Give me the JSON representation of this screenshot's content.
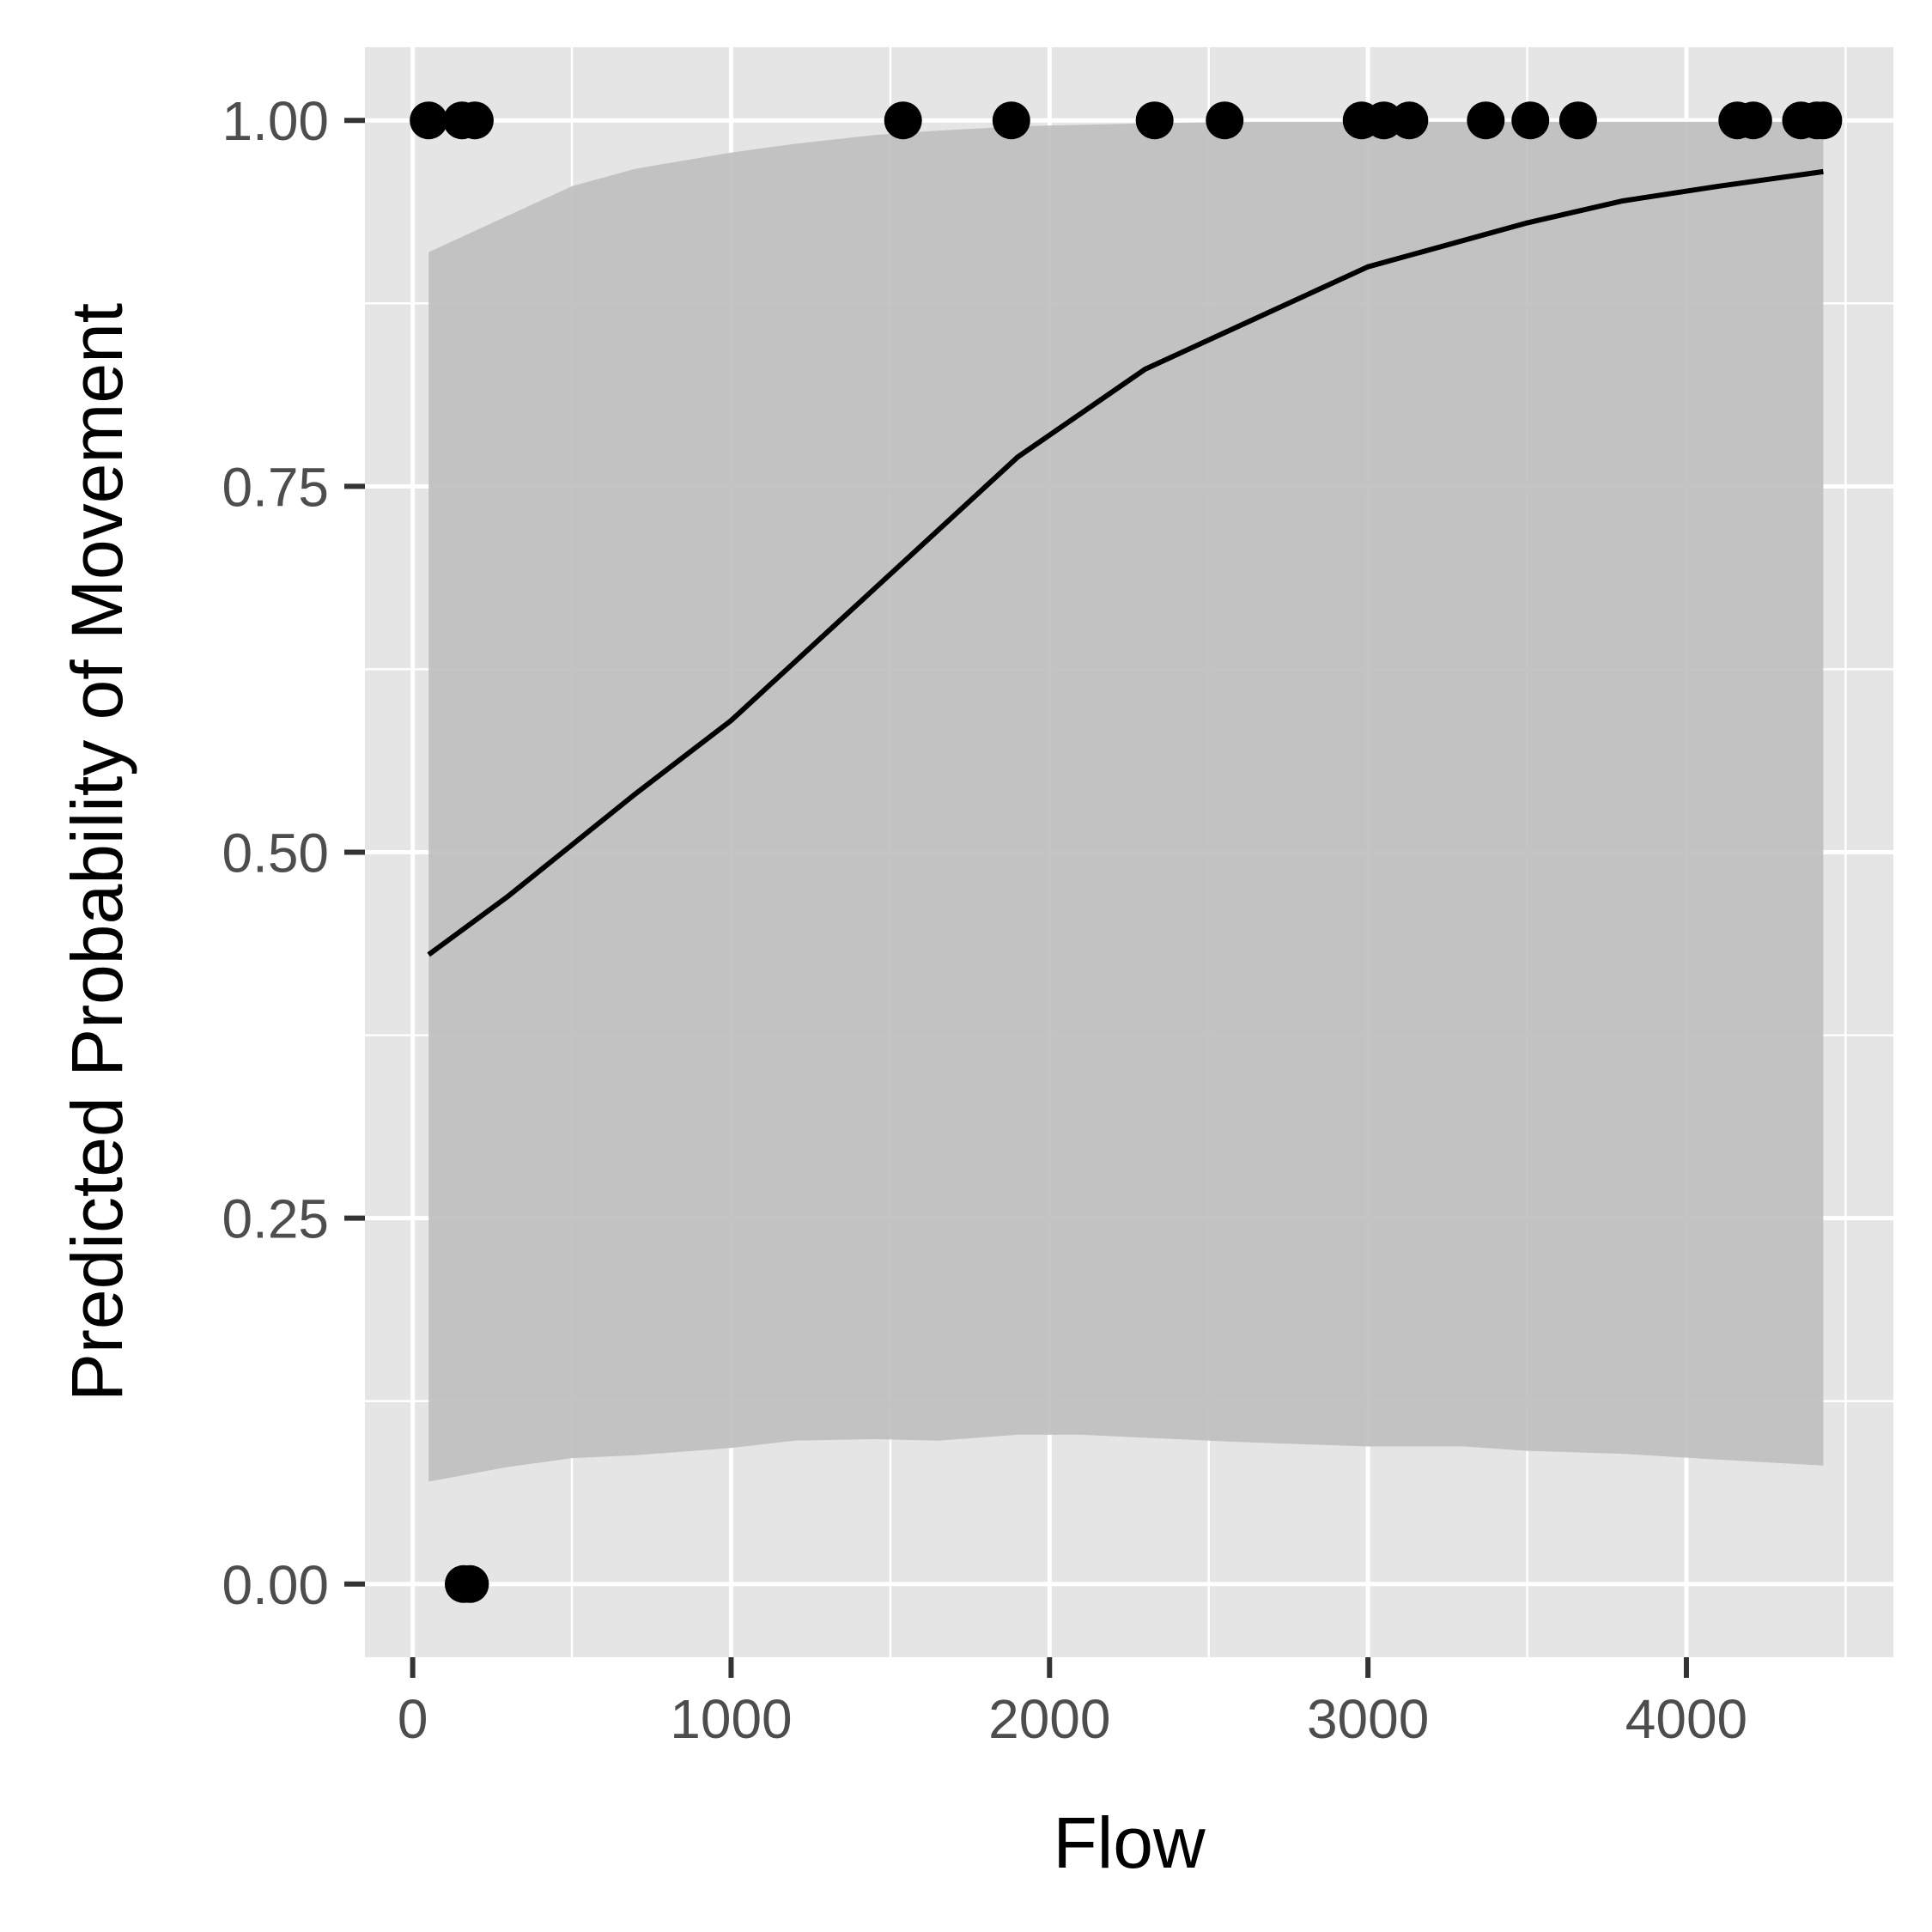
{
  "chart_data": {
    "type": "scatter",
    "xlabel": "Flow",
    "ylabel": "Predicted Probability of Movement",
    "xlim": [
      -150,
      4650
    ],
    "ylim": [
      -0.05,
      1.05
    ],
    "x_ticks": [
      0,
      1000,
      2000,
      3000,
      4000
    ],
    "x_tick_labels": [
      "0",
      "1000",
      "2000",
      "3000",
      "4000"
    ],
    "y_ticks": [
      0,
      0.25,
      0.5,
      0.75,
      1.0
    ],
    "y_tick_labels": [
      "0.00",
      "0.25",
      "0.50",
      "0.75",
      "1.00"
    ],
    "grid": true,
    "points": {
      "x": [
        50,
        155,
        195,
        1540,
        1880,
        2330,
        2550,
        2980,
        3050,
        3130,
        3370,
        3510,
        3660,
        4160,
        4210,
        4360,
        4410,
        4430,
        160,
        180
      ],
      "y": [
        1,
        1,
        1,
        1,
        1,
        1,
        1,
        1,
        1,
        1,
        1,
        1,
        1,
        1,
        1,
        1,
        1,
        1,
        0,
        0
      ]
    },
    "fit_line": {
      "x": [
        50,
        300,
        700,
        1000,
        1200,
        1450,
        1900,
        2300,
        2600,
        3000,
        3500,
        3800,
        4100,
        4430
      ],
      "y": [
        0.43,
        0.47,
        0.54,
        0.59,
        0.63,
        0.68,
        0.77,
        0.83,
        0.86,
        0.9,
        0.93,
        0.945,
        0.955,
        0.965
      ]
    },
    "confidence_band": {
      "x": [
        50,
        300,
        500,
        700,
        1000,
        1200,
        1450,
        1650,
        1900,
        2100,
        2300,
        2600,
        3000,
        3300,
        3500,
        3800,
        4100,
        4430
      ],
      "upper": [
        0.91,
        0.935,
        0.955,
        0.967,
        0.978,
        0.984,
        0.99,
        0.993,
        0.996,
        0.997,
        0.998,
        0.999,
        0.999,
        0.999,
        0.999,
        0.999,
        0.999,
        0.999
      ],
      "lower": [
        0.07,
        0.08,
        0.086,
        0.088,
        0.093,
        0.098,
        0.099,
        0.098,
        0.102,
        0.102,
        0.1,
        0.097,
        0.094,
        0.094,
        0.091,
        0.089,
        0.085,
        0.081
      ]
    },
    "colors": {
      "panel": "#e5e5e5",
      "grid": "#ffffff",
      "band": "#bebebe",
      "line": "#000000",
      "points": "#000000",
      "ticks": "#333333"
    }
  }
}
